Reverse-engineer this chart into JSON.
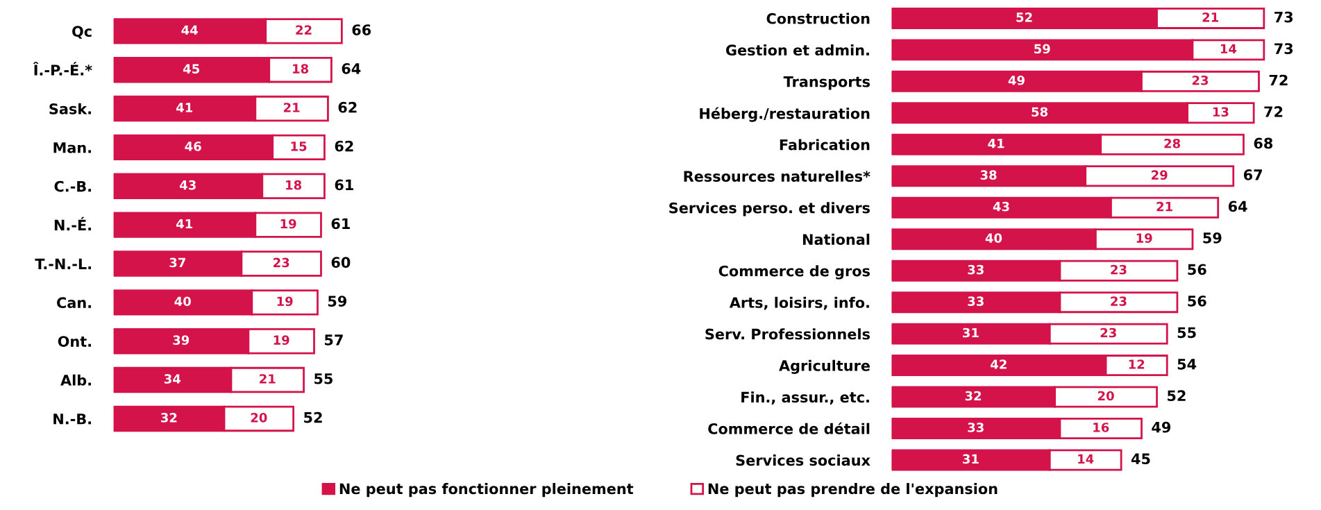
{
  "chart_data": [
    {
      "type": "bar",
      "orientation": "horizontal",
      "stacked": true,
      "data_labels": true,
      "legend": "bottom",
      "grid": false,
      "tick_labels": "y",
      "categories": [
        "Qc",
        "Î.-P.-É.*",
        "Sask.",
        "Man.",
        "C.-B.",
        "N.-É.",
        "T.-N.-L.",
        "Can.",
        "Ont.",
        "Alb.",
        "N.-B."
      ],
      "series": [
        {
          "name": "Ne peut pas fonctionner pleinement",
          "color": "#d4134a",
          "values": [
            44,
            45,
            41,
            46,
            43,
            41,
            37,
            40,
            39,
            34,
            32
          ]
        },
        {
          "name": "Ne peut pas prendre de l'expansion",
          "color": "#ffffff",
          "values": [
            22,
            18,
            21,
            15,
            18,
            19,
            23,
            19,
            19,
            21,
            20
          ]
        }
      ],
      "totals": [
        "66",
        "64",
        "62",
        "62",
        "61",
        "61",
        "60",
        "59",
        "57",
        "55",
        "52"
      ]
    },
    {
      "type": "bar",
      "orientation": "horizontal",
      "stacked": true,
      "data_labels": true,
      "grid": false,
      "tick_labels": "y",
      "categories": [
        "Construction",
        "Gestion et admin.",
        "Transports",
        "Héberg./restauration",
        "Fabrication",
        "Ressources naturelles*",
        "Services perso. et divers",
        "National",
        "Commerce de gros",
        "Arts, loisirs, info.",
        "Serv. Professionnels",
        "Agriculture",
        "Fin., assur., etc.",
        "Commerce de détail",
        "Services sociaux"
      ],
      "series": [
        {
          "color": "#d4134a",
          "values": [
            52,
            59,
            49,
            58,
            41,
            38,
            43,
            40,
            33,
            33,
            31,
            42,
            32,
            33,
            31
          ]
        },
        {
          "color": "#ffffff",
          "values": [
            21,
            14,
            23,
            13,
            28,
            29,
            21,
            19,
            23,
            23,
            23,
            12,
            20,
            16,
            14
          ]
        }
      ],
      "totals": [
        "73",
        "73",
        "72",
        "72",
        "68",
        "67",
        "64",
        "59",
        "56",
        "56",
        "55",
        "54",
        "52",
        "49",
        "45"
      ]
    }
  ]
}
